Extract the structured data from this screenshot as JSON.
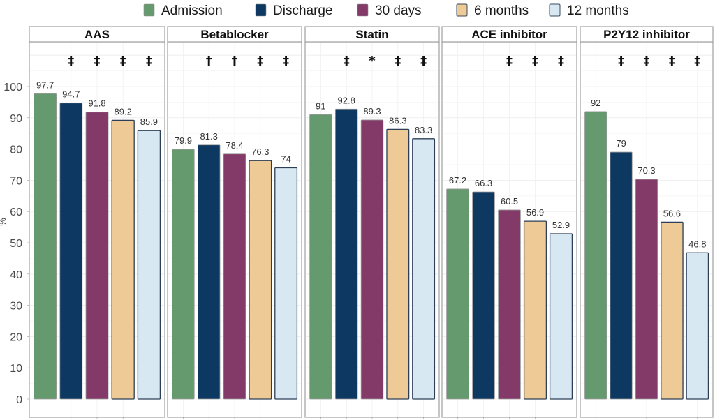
{
  "chart_data": {
    "type": "bar",
    "title": "",
    "xlabel": "",
    "ylabel": "%",
    "ylim": [
      0,
      100
    ],
    "yticks": [
      0,
      10,
      20,
      30,
      40,
      50,
      60,
      70,
      80,
      90,
      100
    ],
    "grid": true,
    "legend_position": "top",
    "series": [
      {
        "name": "Admission",
        "color": "#659a6e"
      },
      {
        "name": "Discharge",
        "color": "#0d3862"
      },
      {
        "name": "30 days",
        "color": "#843a68"
      },
      {
        "name": "6 months",
        "color": "#eecb96"
      },
      {
        "name": "12 months",
        "color": "#d7e8f2"
      }
    ],
    "panels": [
      {
        "title": "AAS",
        "values": [
          97.7,
          94.7,
          91.8,
          89.2,
          85.9
        ],
        "labels": [
          "97.7",
          "94.7",
          "91.8",
          "89.2",
          "85.9"
        ],
        "significance": [
          "",
          "‡",
          "‡",
          "‡",
          "‡"
        ]
      },
      {
        "title": "Betablocker",
        "values": [
          79.9,
          81.3,
          78.4,
          76.3,
          74
        ],
        "labels": [
          "79.9",
          "81.3",
          "78.4",
          "76.3",
          "74"
        ],
        "significance": [
          "",
          "†",
          "†",
          "‡",
          "‡"
        ]
      },
      {
        "title": "Statin",
        "values": [
          91,
          92.8,
          89.3,
          86.3,
          83.3
        ],
        "labels": [
          "91",
          "92.8",
          "89.3",
          "86.3",
          "83.3"
        ],
        "significance": [
          "",
          "‡",
          "*",
          "‡",
          "‡"
        ]
      },
      {
        "title": "ACE inhibitor",
        "values": [
          67.2,
          66.3,
          60.5,
          56.9,
          52.9
        ],
        "labels": [
          "67.2",
          "66.3",
          "60.5",
          "56.9",
          "52.9"
        ],
        "significance": [
          "",
          "",
          "‡",
          "‡",
          "‡"
        ]
      },
      {
        "title": "P2Y12 inhibitor",
        "values": [
          92,
          79,
          70.3,
          56.6,
          46.8
        ],
        "labels": [
          "92",
          "79",
          "70.3",
          "56.6",
          "46.8"
        ],
        "significance": [
          "",
          "‡",
          "‡",
          "‡",
          "‡"
        ]
      }
    ]
  }
}
